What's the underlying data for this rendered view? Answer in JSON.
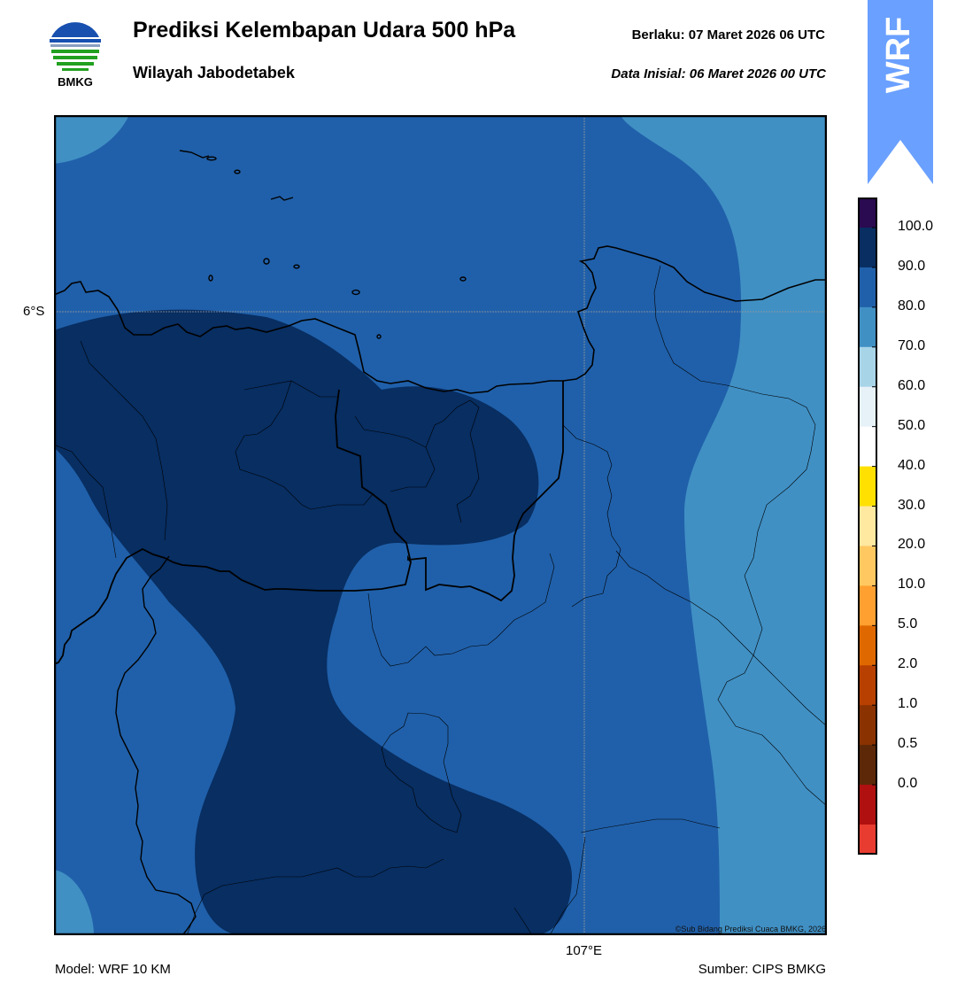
{
  "header": {
    "title": "Prediksi Kelembapan Udara 500 hPa",
    "subtitle": "Wilayah Jabodetabek",
    "valid_label": "Berlaku:  07 Maret 2026 06 UTC",
    "init_label": "Data Inisial:  06 Maret 2026 00 UTC"
  },
  "logo": {
    "text": "BMKG"
  },
  "banner": {
    "text": "WRF",
    "color": "#6aa0ff"
  },
  "map": {
    "lat_label": "6°S",
    "lon_label": "107°E",
    "copyright": "©Sub Bidang Prediksi Cuaca BMKG, 2026"
  },
  "footer": {
    "model": "Model: WRF 10 KM",
    "source": "Sumber: CIPS BMKG"
  },
  "colorbar": {
    "labels": [
      "100.0",
      "90.0",
      "80.0",
      "70.0",
      "60.0",
      "50.0",
      "40.0",
      "30.0",
      "20.0",
      "10.0",
      "5.0",
      "2.0",
      "1.0",
      "0.5",
      "0.0"
    ],
    "colors_top_to_bottom": [
      "#2a0a50",
      "#082e62",
      "#2060aa",
      "#4090c4",
      "#a8d4e8",
      "#e6f1f8",
      "#ffffff",
      "#ffe000",
      "#ffe8a0",
      "#ffc860",
      "#ffa030",
      "#e06800",
      "#b84000",
      "#8a3200",
      "#5c2808",
      "#b01010",
      "#e83c30"
    ],
    "class_colors": {
      "above_90": "#082e62",
      "80_90": "#2060aa",
      "70_80": "#4090c4"
    }
  }
}
